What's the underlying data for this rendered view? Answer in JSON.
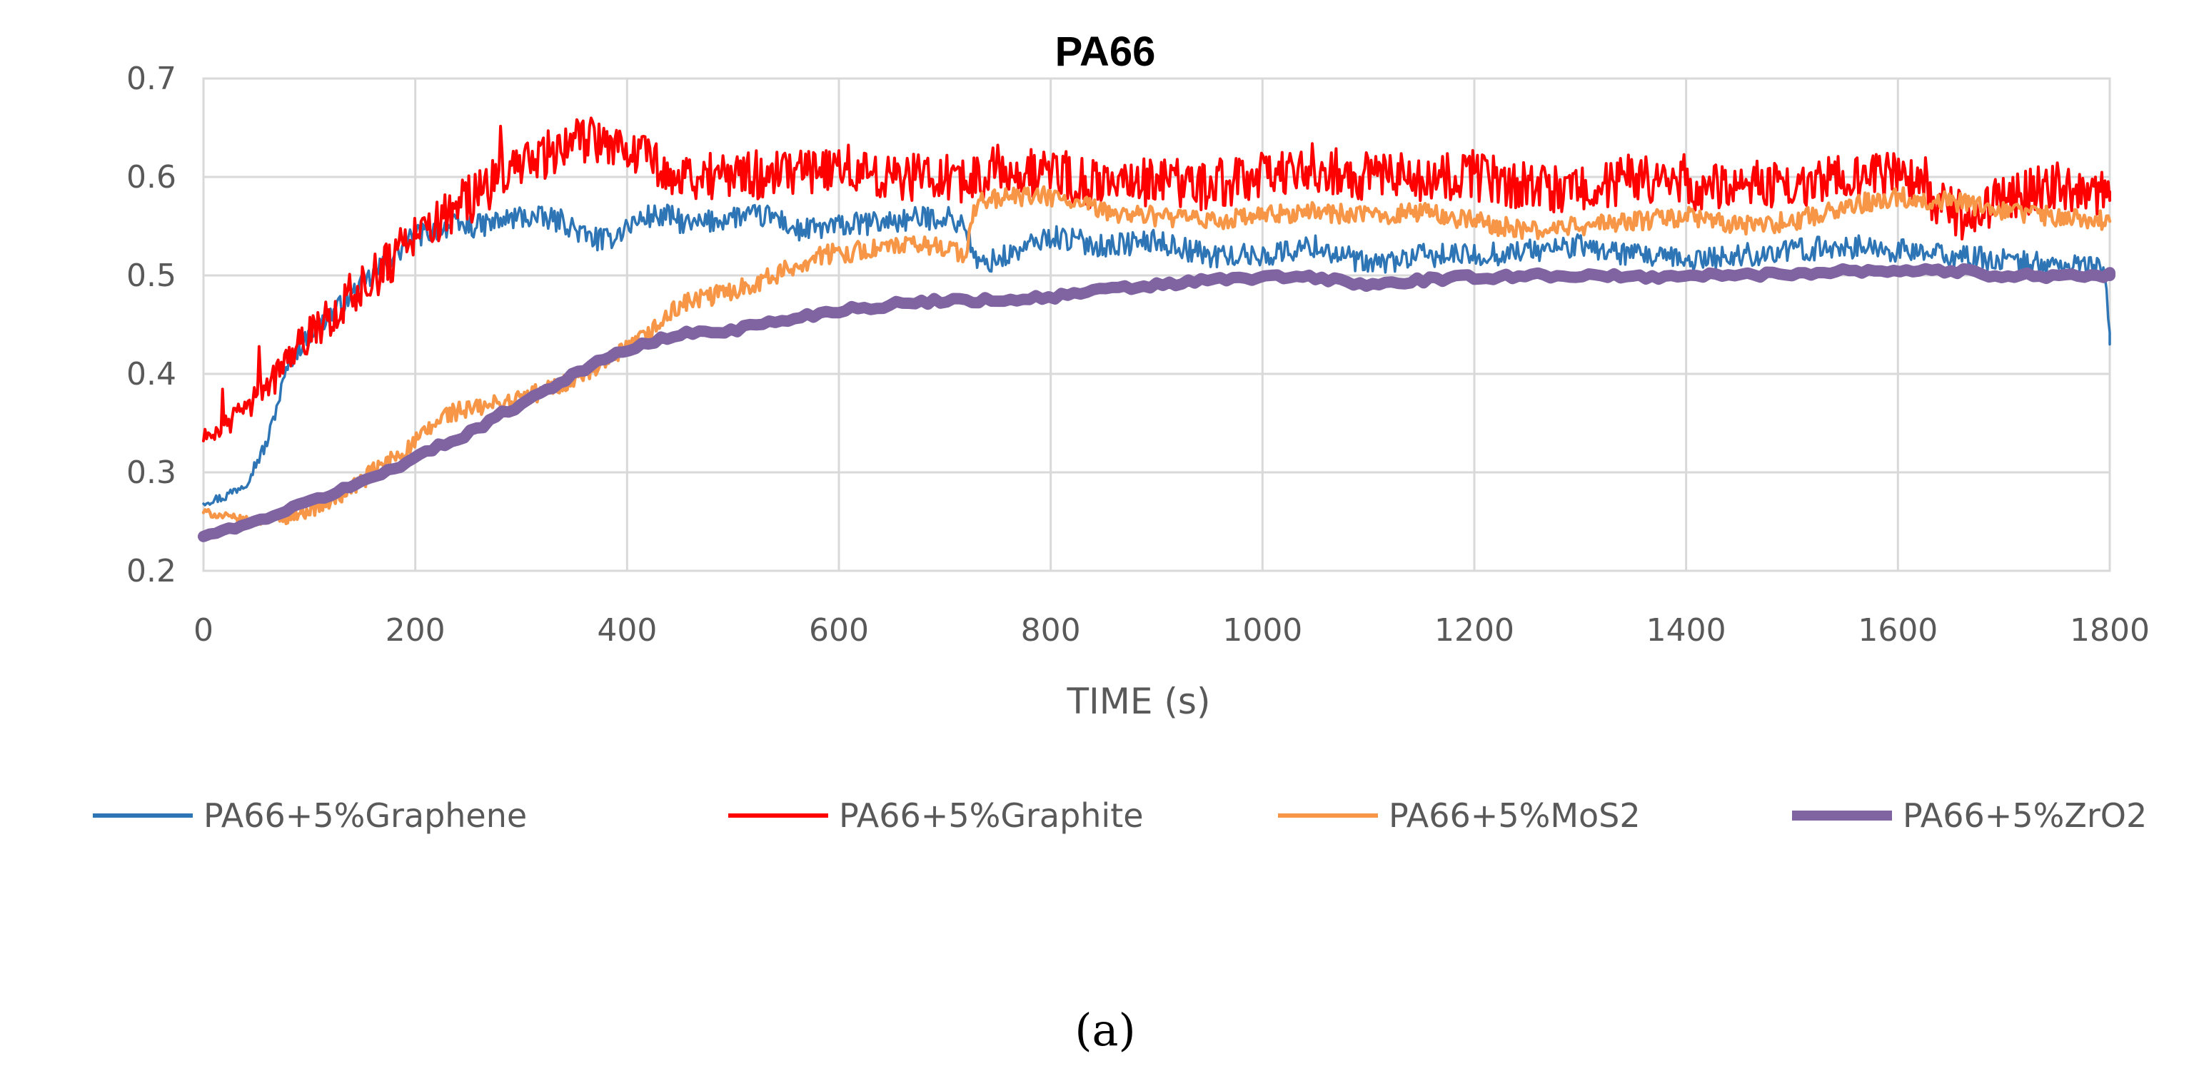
{
  "chart_data": {
    "type": "line",
    "title": "PA66",
    "xlabel": "TIME (s)",
    "ylabel": "",
    "xlim": [
      0,
      1800
    ],
    "ylim": [
      0.2,
      0.7
    ],
    "x_ticks": [
      "0",
      "200",
      "400",
      "600",
      "800",
      "1000",
      "1200",
      "1400",
      "1600",
      "1800"
    ],
    "y_ticks": [
      "0.2",
      "0.3",
      "0.4",
      "0.5",
      "0.6",
      "0.7"
    ],
    "grid": true,
    "legend_position": "bottom",
    "series": [
      {
        "name": "PA66+5%Graphene",
        "color": "#2E75B6",
        "noise": 0.012,
        "points": [
          [
            0,
            0.27
          ],
          [
            20,
            0.275
          ],
          [
            40,
            0.29
          ],
          [
            60,
            0.33
          ],
          [
            80,
            0.41
          ],
          [
            100,
            0.44
          ],
          [
            120,
            0.46
          ],
          [
            150,
            0.49
          ],
          [
            180,
            0.52
          ],
          [
            200,
            0.54
          ],
          [
            230,
            0.55
          ],
          [
            260,
            0.55
          ],
          [
            300,
            0.56
          ],
          [
            340,
            0.555
          ],
          [
            360,
            0.54
          ],
          [
            380,
            0.535
          ],
          [
            400,
            0.55
          ],
          [
            420,
            0.56
          ],
          [
            440,
            0.56
          ],
          [
            460,
            0.55
          ],
          [
            500,
            0.56
          ],
          [
            540,
            0.56
          ],
          [
            560,
            0.545
          ],
          [
            600,
            0.55
          ],
          [
            650,
            0.555
          ],
          [
            700,
            0.56
          ],
          [
            720,
            0.55
          ],
          [
            730,
            0.51
          ],
          [
            760,
            0.52
          ],
          [
            800,
            0.54
          ],
          [
            850,
            0.53
          ],
          [
            900,
            0.535
          ],
          [
            950,
            0.52
          ],
          [
            1000,
            0.52
          ],
          [
            1050,
            0.53
          ],
          [
            1100,
            0.51
          ],
          [
            1150,
            0.52
          ],
          [
            1200,
            0.52
          ],
          [
            1250,
            0.525
          ],
          [
            1300,
            0.53
          ],
          [
            1350,
            0.52
          ],
          [
            1400,
            0.515
          ],
          [
            1450,
            0.52
          ],
          [
            1500,
            0.525
          ],
          [
            1550,
            0.53
          ],
          [
            1600,
            0.525
          ],
          [
            1650,
            0.52
          ],
          [
            1700,
            0.515
          ],
          [
            1750,
            0.51
          ],
          [
            1795,
            0.51
          ],
          [
            1800,
            0.43
          ]
        ]
      },
      {
        "name": "PA66+5%Graphite",
        "color": "#FF0000",
        "noise": 0.025,
        "points": [
          [
            0,
            0.335
          ],
          [
            30,
            0.355
          ],
          [
            60,
            0.385
          ],
          [
            90,
            0.43
          ],
          [
            120,
            0.46
          ],
          [
            150,
            0.49
          ],
          [
            180,
            0.52
          ],
          [
            210,
            0.55
          ],
          [
            240,
            0.57
          ],
          [
            270,
            0.59
          ],
          [
            300,
            0.615
          ],
          [
            340,
            0.63
          ],
          [
            370,
            0.64
          ],
          [
            400,
            0.635
          ],
          [
            420,
            0.62
          ],
          [
            450,
            0.6
          ],
          [
            500,
            0.6
          ],
          [
            550,
            0.605
          ],
          [
            600,
            0.61
          ],
          [
            650,
            0.6
          ],
          [
            700,
            0.6
          ],
          [
            720,
            0.59
          ],
          [
            750,
            0.61
          ],
          [
            800,
            0.6
          ],
          [
            850,
            0.59
          ],
          [
            900,
            0.595
          ],
          [
            950,
            0.59
          ],
          [
            1000,
            0.6
          ],
          [
            1050,
            0.61
          ],
          [
            1100,
            0.6
          ],
          [
            1150,
            0.6
          ],
          [
            1200,
            0.6
          ],
          [
            1250,
            0.59
          ],
          [
            1300,
            0.585
          ],
          [
            1350,
            0.6
          ],
          [
            1400,
            0.59
          ],
          [
            1450,
            0.595
          ],
          [
            1500,
            0.59
          ],
          [
            1550,
            0.6
          ],
          [
            1600,
            0.6
          ],
          [
            1640,
            0.575
          ],
          [
            1660,
            0.56
          ],
          [
            1700,
            0.58
          ],
          [
            1750,
            0.59
          ],
          [
            1800,
            0.585
          ]
        ]
      },
      {
        "name": "PA66+5%MoS2",
        "color": "#F79646",
        "noise": 0.01,
        "points": [
          [
            0,
            0.26
          ],
          [
            40,
            0.25
          ],
          [
            80,
            0.255
          ],
          [
            120,
            0.27
          ],
          [
            160,
            0.3
          ],
          [
            200,
            0.33
          ],
          [
            230,
            0.36
          ],
          [
            260,
            0.365
          ],
          [
            300,
            0.375
          ],
          [
            340,
            0.39
          ],
          [
            380,
            0.41
          ],
          [
            420,
            0.44
          ],
          [
            450,
            0.47
          ],
          [
            500,
            0.485
          ],
          [
            540,
            0.5
          ],
          [
            580,
            0.52
          ],
          [
            620,
            0.525
          ],
          [
            660,
            0.53
          ],
          [
            700,
            0.53
          ],
          [
            720,
            0.52
          ],
          [
            730,
            0.575
          ],
          [
            760,
            0.58
          ],
          [
            800,
            0.58
          ],
          [
            850,
            0.565
          ],
          [
            900,
            0.56
          ],
          [
            950,
            0.555
          ],
          [
            1000,
            0.56
          ],
          [
            1050,
            0.565
          ],
          [
            1100,
            0.56
          ],
          [
            1150,
            0.565
          ],
          [
            1200,
            0.555
          ],
          [
            1250,
            0.545
          ],
          [
            1300,
            0.55
          ],
          [
            1350,
            0.555
          ],
          [
            1400,
            0.56
          ],
          [
            1450,
            0.55
          ],
          [
            1500,
            0.555
          ],
          [
            1550,
            0.57
          ],
          [
            1600,
            0.58
          ],
          [
            1650,
            0.575
          ],
          [
            1700,
            0.565
          ],
          [
            1750,
            0.56
          ],
          [
            1800,
            0.555
          ]
        ]
      },
      {
        "name": "PA66+5%ZrO2",
        "color": "#8064A2",
        "noise": 0.003,
        "points": [
          [
            0,
            0.235
          ],
          [
            50,
            0.25
          ],
          [
            100,
            0.27
          ],
          [
            150,
            0.29
          ],
          [
            200,
            0.315
          ],
          [
            250,
            0.34
          ],
          [
            300,
            0.37
          ],
          [
            350,
            0.4
          ],
          [
            400,
            0.425
          ],
          [
            450,
            0.44
          ],
          [
            500,
            0.445
          ],
          [
            550,
            0.455
          ],
          [
            600,
            0.465
          ],
          [
            650,
            0.47
          ],
          [
            700,
            0.475
          ],
          [
            750,
            0.475
          ],
          [
            800,
            0.478
          ],
          [
            850,
            0.485
          ],
          [
            900,
            0.49
          ],
          [
            950,
            0.495
          ],
          [
            1000,
            0.498
          ],
          [
            1050,
            0.498
          ],
          [
            1100,
            0.49
          ],
          [
            1150,
            0.495
          ],
          [
            1200,
            0.498
          ],
          [
            1250,
            0.5
          ],
          [
            1300,
            0.5
          ],
          [
            1350,
            0.498
          ],
          [
            1400,
            0.5
          ],
          [
            1450,
            0.5
          ],
          [
            1500,
            0.502
          ],
          [
            1550,
            0.505
          ],
          [
            1600,
            0.505
          ],
          [
            1650,
            0.505
          ],
          [
            1700,
            0.5
          ],
          [
            1750,
            0.5
          ],
          [
            1800,
            0.5
          ]
        ]
      }
    ]
  },
  "caption": "(a)"
}
